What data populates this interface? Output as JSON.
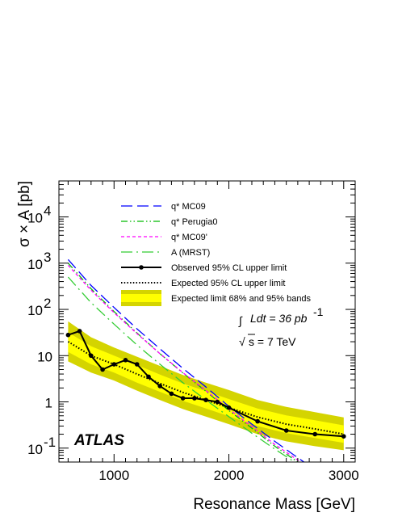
{
  "chart_data": {
    "type": "line",
    "title": "",
    "xlabel": "Resonance Mass [GeV]",
    "ylabel": "σ × A [pb]",
    "xlim": [
      520,
      3100
    ],
    "ylim": [
      0.05,
      60000
    ],
    "y_scale": "log",
    "grid": false,
    "legend_position": "top-center",
    "x_ticks": [
      1000,
      2000,
      3000
    ],
    "x_tick_labels": [
      "1000",
      "2000",
      "3000"
    ],
    "y_ticks": [
      0.1,
      1,
      10,
      100,
      1000,
      10000
    ],
    "y_tick_labels": [
      {
        "base": "10",
        "exp": "-1"
      },
      {
        "base": "1",
        "exp": ""
      },
      {
        "base": "10",
        "exp": ""
      },
      {
        "base": "10",
        "exp": "2"
      },
      {
        "base": "10",
        "exp": "3"
      },
      {
        "base": "10",
        "exp": "4"
      }
    ],
    "series": [
      {
        "name": "q* MC09",
        "color": "#0000ff",
        "dash": "long-dash",
        "x": [
          600,
          800,
          1000,
          1200,
          1400,
          1600,
          1800,
          2000,
          2200,
          2400,
          2600,
          2800
        ],
        "y": [
          1200,
          330,
          110,
          38,
          14,
          5.3,
          2.1,
          0.8,
          0.33,
          0.14,
          0.062,
          0.028
        ]
      },
      {
        "name": "q* Perugia0",
        "color": "#00bb00",
        "dash": "dash-dot-dot",
        "x": [
          600,
          800,
          1000,
          1200,
          1400,
          1600,
          1800,
          2000,
          2200,
          2400,
          2600,
          2800
        ],
        "y": [
          1000,
          280,
          90,
          31,
          11,
          4.2,
          1.7,
          0.65,
          0.27,
          0.11,
          0.05,
          0.022
        ]
      },
      {
        "name": "q* MC09'",
        "color": "#ff00ff",
        "dash": "short-dash",
        "x": [
          600,
          800,
          1000,
          1200,
          1400,
          1600,
          1800,
          2000,
          2200,
          2400,
          2600,
          2800
        ],
        "y": [
          900,
          260,
          85,
          30,
          11,
          4.3,
          1.75,
          0.7,
          0.29,
          0.12,
          0.055,
          0.025
        ]
      },
      {
        "name": "A (MRST)",
        "color": "#33cc33",
        "dash": "long-dash-dot",
        "x": [
          600,
          800,
          1000,
          1200,
          1400,
          1600,
          1800,
          2000,
          2200,
          2400,
          2600,
          2800
        ],
        "y": [
          500,
          140,
          48,
          17,
          6.5,
          2.6,
          1.1,
          0.48,
          0.21,
          0.095,
          0.045,
          0.022
        ]
      },
      {
        "name": "Observed 95% CL upper limit",
        "color": "#000000",
        "dash": "solid",
        "markers": true,
        "x": [
          600,
          700,
          800,
          900,
          1000,
          1100,
          1200,
          1300,
          1400,
          1500,
          1600,
          1700,
          1800,
          1900,
          2000,
          2250,
          2500,
          2750,
          3000
        ],
        "y": [
          28,
          34,
          10,
          5,
          6.5,
          8,
          6.5,
          3.5,
          2.2,
          1.5,
          1.2,
          1.2,
          1.1,
          1.0,
          0.75,
          0.38,
          0.24,
          0.2,
          0.18
        ]
      },
      {
        "name": "Expected 95% CL upper limit",
        "color": "#000000",
        "dash": "dotted",
        "x": [
          600,
          800,
          1000,
          1200,
          1400,
          1600,
          1800,
          2000,
          2250,
          2500,
          2750,
          3000
        ],
        "y": [
          20,
          10,
          6.5,
          4.0,
          2.5,
          1.6,
          1.1,
          0.75,
          0.47,
          0.33,
          0.26,
          0.2
        ]
      },
      {
        "name": "Expected limit 68% and 95% bands",
        "color": "#ffff00",
        "band": true,
        "x": [
          600,
          800,
          1000,
          1200,
          1400,
          1600,
          1800,
          2000,
          2250,
          2500,
          2750,
          3000
        ],
        "inner_low": [
          12,
          6.5,
          4.3,
          2.6,
          1.65,
          1.05,
          0.72,
          0.49,
          0.3,
          0.21,
          0.165,
          0.13
        ],
        "inner_high": [
          32,
          16,
          10,
          6.3,
          3.9,
          2.5,
          1.7,
          1.15,
          0.72,
          0.51,
          0.4,
          0.31
        ],
        "outer_low": [
          7.5,
          4.3,
          2.9,
          1.75,
          1.1,
          0.7,
          0.48,
          0.33,
          0.2,
          0.14,
          0.11,
          0.09
        ],
        "outer_high": [
          55,
          25,
          15,
          9.5,
          6,
          3.8,
          2.6,
          1.8,
          1.1,
          0.78,
          0.6,
          0.46
        ],
        "inner_color": "#ffff00",
        "outer_color": "#d4d400"
      }
    ],
    "annotations": {
      "lumi_text": "Ldt = 36 pb",
      "lumi_exp": "-1",
      "energy_text": "s = 7 TeV",
      "experiment_label": "ATLAS"
    }
  }
}
